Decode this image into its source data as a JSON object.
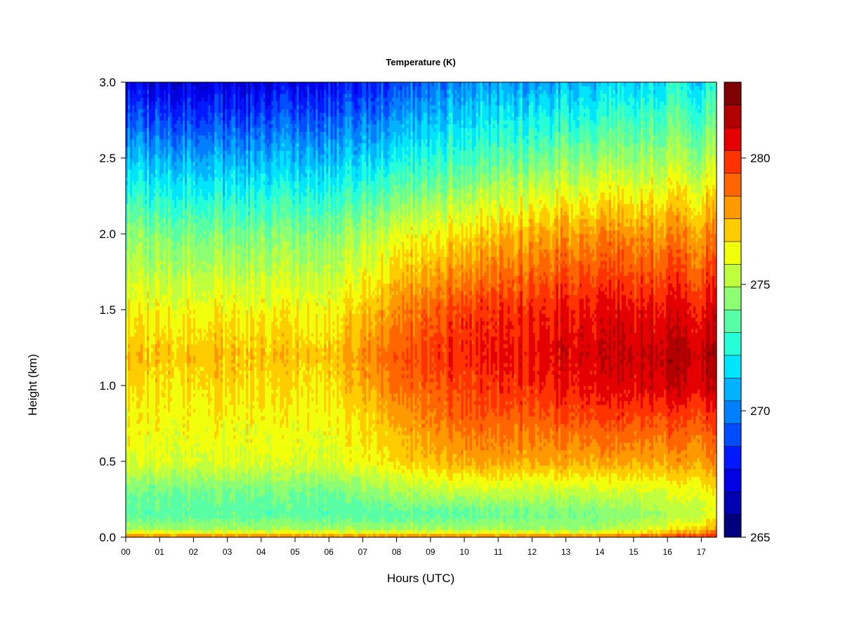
{
  "chart_data": {
    "type": "heatmap",
    "title": "Temperature (K)",
    "xlabel": "Hours (UTC)",
    "ylabel": "Height (km)",
    "xlim": [
      0,
      17.45
    ],
    "ylim": [
      0,
      3.0
    ],
    "x_ticks": [
      "00",
      "01",
      "02",
      "03",
      "04",
      "05",
      "06",
      "07",
      "08",
      "09",
      "10",
      "11",
      "12",
      "13",
      "14",
      "15",
      "16",
      "17"
    ],
    "y_ticks": [
      "0.0",
      "0.5",
      "1.0",
      "1.5",
      "2.0",
      "2.5",
      "3.0"
    ],
    "colorbar": {
      "min": 265,
      "max": 283,
      "step": 1,
      "ticks": [
        "265",
        "270",
        "275",
        "280"
      ],
      "colors": [
        "#00007f",
        "#0000b2",
        "#0000e5",
        "#0019ff",
        "#004cff",
        "#007fff",
        "#00b2ff",
        "#00e5ff",
        "#26ffd8",
        "#59ffa5",
        "#8cff72",
        "#bfff3f",
        "#f2ff0c",
        "#ffcc00",
        "#ff9900",
        "#ff6600",
        "#ff3300",
        "#e50000",
        "#b20000",
        "#7f0000"
      ]
    },
    "profiles": [
      {
        "hour": 0,
        "values": {
          "0.0": 279,
          "0.05": 275,
          "0.15": 273.5,
          "0.3": 274,
          "0.5": 276,
          "0.8": 276.5,
          "1.0": 277,
          "1.2": 277.5,
          "1.5": 276.5,
          "2.0": 274.5,
          "2.5": 271,
          "3.0": 267
        }
      },
      {
        "hour": 3,
        "values": {
          "0.0": 279,
          "0.05": 275,
          "0.15": 273.5,
          "0.3": 274,
          "0.5": 276,
          "0.8": 276.5,
          "1.0": 277,
          "1.2": 277.5,
          "1.5": 276.5,
          "2.0": 274,
          "2.5": 270.5,
          "3.0": 266.5
        }
      },
      {
        "hour": 6,
        "values": {
          "0.0": 279,
          "0.05": 275,
          "0.15": 273.5,
          "0.3": 274,
          "0.5": 276,
          "0.8": 276.5,
          "1.0": 277,
          "1.2": 277.5,
          "1.5": 276.5,
          "2.0": 274.5,
          "2.5": 271,
          "3.0": 267.5
        }
      },
      {
        "hour": 8,
        "values": {
          "0.0": 279,
          "0.05": 275,
          "0.15": 273.5,
          "0.3": 275,
          "0.5": 277,
          "0.8": 278,
          "1.0": 279,
          "1.2": 279.5,
          "1.5": 278.5,
          "2.0": 276,
          "2.5": 272,
          "3.0": 268.5
        }
      },
      {
        "hour": 10,
        "values": {
          "0.0": 279,
          "0.05": 275,
          "0.15": 273.5,
          "0.3": 275.5,
          "0.5": 278,
          "0.8": 279.5,
          "1.0": 280,
          "1.2": 280.5,
          "1.5": 280,
          "2.0": 277,
          "2.5": 273,
          "3.0": 270
        }
      },
      {
        "hour": 12,
        "values": {
          "0.0": 279,
          "0.05": 275,
          "0.15": 274,
          "0.3": 275.5,
          "0.5": 278,
          "0.8": 279.5,
          "1.0": 280.5,
          "1.2": 281,
          "1.5": 280.5,
          "2.0": 278,
          "2.5": 274,
          "3.0": 270.5
        }
      },
      {
        "hour": 14,
        "values": {
          "0.0": 279,
          "0.05": 275,
          "0.15": 274,
          "0.3": 275.5,
          "0.5": 278,
          "0.8": 280,
          "1.0": 281,
          "1.2": 281.5,
          "1.5": 281,
          "2.0": 278.5,
          "2.5": 274.5,
          "3.0": 271
        }
      },
      {
        "hour": 16,
        "values": {
          "0.0": 280,
          "0.05": 276.5,
          "0.15": 275,
          "0.3": 276,
          "0.5": 278,
          "0.8": 280,
          "1.0": 281.5,
          "1.2": 282,
          "1.5": 281,
          "2.0": 278.5,
          "2.5": 275,
          "3.0": 272
        }
      },
      {
        "hour": 17.45,
        "values": {
          "0.0": 281,
          "0.05": 278,
          "0.15": 276,
          "0.3": 276.5,
          "0.5": 278.5,
          "0.8": 280,
          "1.0": 281.5,
          "1.2": 282,
          "1.5": 281,
          "2.0": 278.5,
          "2.5": 275,
          "3.0": 272
        }
      }
    ]
  }
}
